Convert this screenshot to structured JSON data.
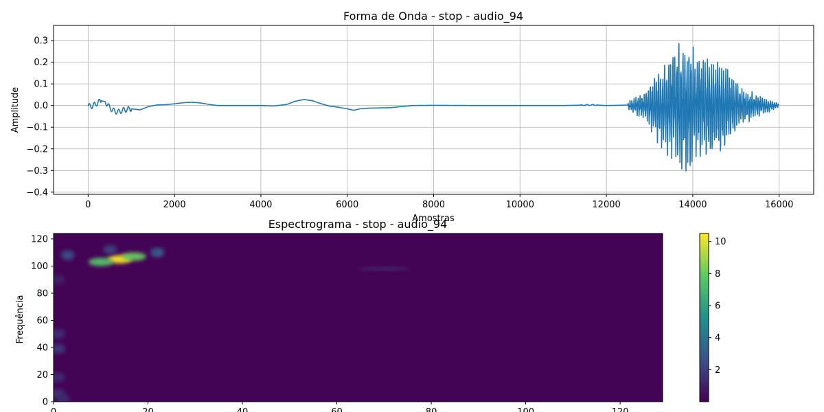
{
  "chart_data": [
    {
      "type": "line",
      "title": "Forma de Onda - stop - audio_94",
      "xlabel": "Amostras",
      "ylabel": "Amplitude",
      "xlim": [
        -800,
        16800
      ],
      "ylim": [
        -0.41,
        0.37
      ],
      "x_ticks": [
        0,
        2000,
        4000,
        6000,
        8000,
        10000,
        12000,
        14000,
        16000
      ],
      "y_ticks": [
        -0.4,
        -0.3,
        -0.2,
        -0.1,
        0.0,
        0.1,
        0.2,
        0.3
      ],
      "y_tick_labels": [
        "−0.4",
        "−0.3",
        "−0.2",
        "−0.1",
        "0.0",
        "0.1",
        "0.2",
        "0.3"
      ],
      "grid": true,
      "color": "#1f77b4",
      "series": [
        {
          "x": [
            0,
            100,
            200,
            300,
            400,
            500,
            600,
            700,
            800,
            900,
            1000,
            1200,
            1400,
            1600,
            1800,
            2000,
            2200,
            2400,
            2600,
            2800,
            3000,
            3500,
            4000,
            4300,
            4600,
            4800,
            5000,
            5200,
            5400,
            5600,
            5800,
            6000,
            6150,
            6300,
            6500,
            7000,
            7500,
            8000,
            9000,
            10000,
            11000,
            11500,
            11700,
            12000,
            12500
          ],
          "values": [
            -0.003,
            -0.002,
            0.01,
            0.022,
            0.018,
            -0.01,
            -0.025,
            -0.03,
            -0.022,
            -0.018,
            -0.015,
            -0.02,
            -0.005,
            0.003,
            0.004,
            0.008,
            0.013,
            0.015,
            0.012,
            0.005,
            0.0,
            0.0,
            0.0,
            -0.002,
            0.005,
            0.02,
            0.028,
            0.022,
            0.008,
            -0.003,
            -0.008,
            -0.015,
            -0.022,
            -0.015,
            -0.012,
            -0.01,
            0.0,
            0.001,
            0.0,
            0.0,
            0.0,
            0.002,
            0.003,
            0.0,
            0.002
          ]
        }
      ],
      "burst": {
        "x_start": 12500,
        "x_end": 16000,
        "peak_positive": 0.34,
        "peak_negative": -0.37,
        "peak_at": 13700
      }
    },
    {
      "type": "heatmap",
      "title": "Espectrograma - stop - audio_94",
      "ylabel": "Frequência",
      "xlim": [
        0,
        129
      ],
      "ylim": [
        0,
        124
      ],
      "x_ticks": [
        0,
        20,
        40,
        60,
        80,
        100,
        120
      ],
      "y_ticks": [
        0,
        20,
        40,
        60,
        80,
        100,
        120
      ],
      "colormap": "viridis",
      "colorbar": {
        "min": 0,
        "max": 10.5,
        "ticks": [
          2,
          4,
          6,
          8,
          10
        ]
      },
      "background_value": 0.1,
      "hotspots": [
        {
          "x": 14,
          "y": 105,
          "value": 10.5
        },
        {
          "x": 10,
          "y": 103,
          "value": 7.5
        },
        {
          "x": 17,
          "y": 107,
          "value": 8.0
        },
        {
          "x": 22,
          "y": 110,
          "value": 3.0
        },
        {
          "x": 3,
          "y": 108,
          "value": 2.5
        },
        {
          "x": 12,
          "y": 112,
          "value": 2.0
        },
        {
          "x": 70,
          "y": 98,
          "value": 1.6
        },
        {
          "x": 1,
          "y": 50,
          "value": 1.5
        },
        {
          "x": 1,
          "y": 39,
          "value": 1.8
        },
        {
          "x": 1,
          "y": 18,
          "value": 1.4
        },
        {
          "x": 1,
          "y": 6,
          "value": 1.6
        },
        {
          "x": 2,
          "y": 2,
          "value": 1.3
        },
        {
          "x": 1,
          "y": 90,
          "value": 1.0
        }
      ]
    }
  ]
}
